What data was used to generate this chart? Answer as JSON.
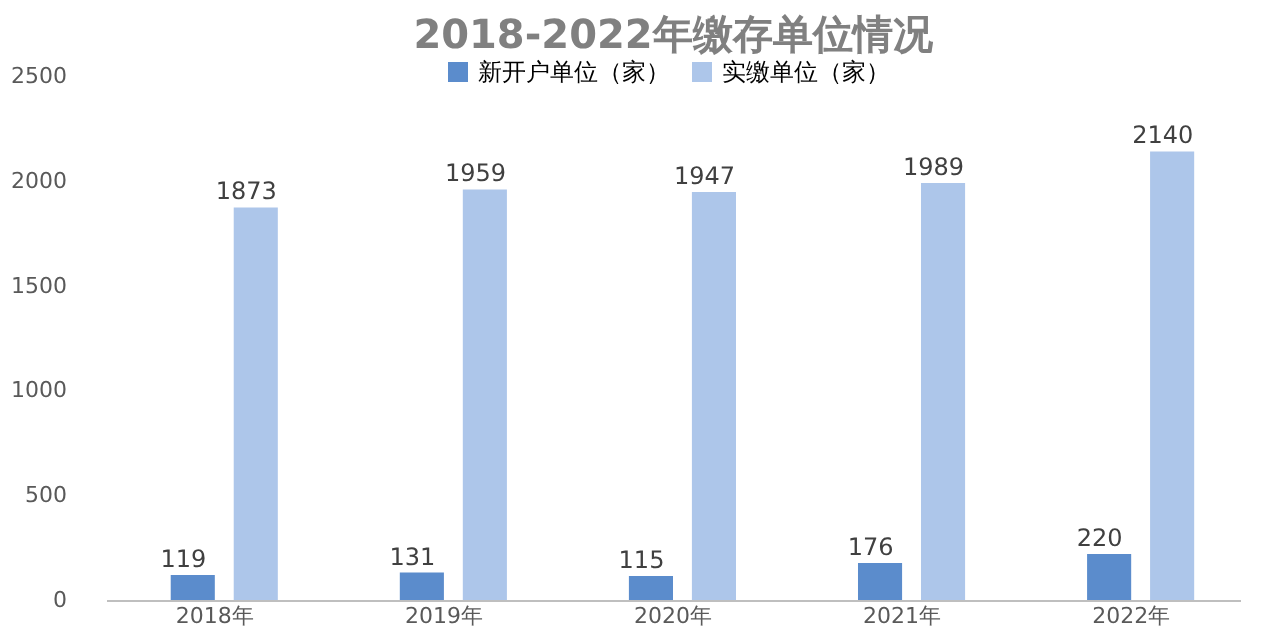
{
  "chart_data": {
    "type": "bar",
    "title": "2018-2022年缴存单位情况",
    "categories": [
      "2018年",
      "2019年",
      "2020年",
      "2021年",
      "2022年"
    ],
    "series": [
      {
        "name": "新开户单位（家）",
        "color": "#5b8ccc",
        "values": [
          119,
          131,
          115,
          176,
          220
        ]
      },
      {
        "name": "实缴单位（家）",
        "color": "#adc6ea",
        "values": [
          1873,
          1959,
          1947,
          1989,
          2140
        ]
      }
    ],
    "ylim": [
      0,
      2500
    ],
    "yticks": [
      0,
      500,
      1000,
      1500,
      2000,
      2500
    ],
    "grid": false,
    "legend": "top",
    "data_labels": true
  }
}
